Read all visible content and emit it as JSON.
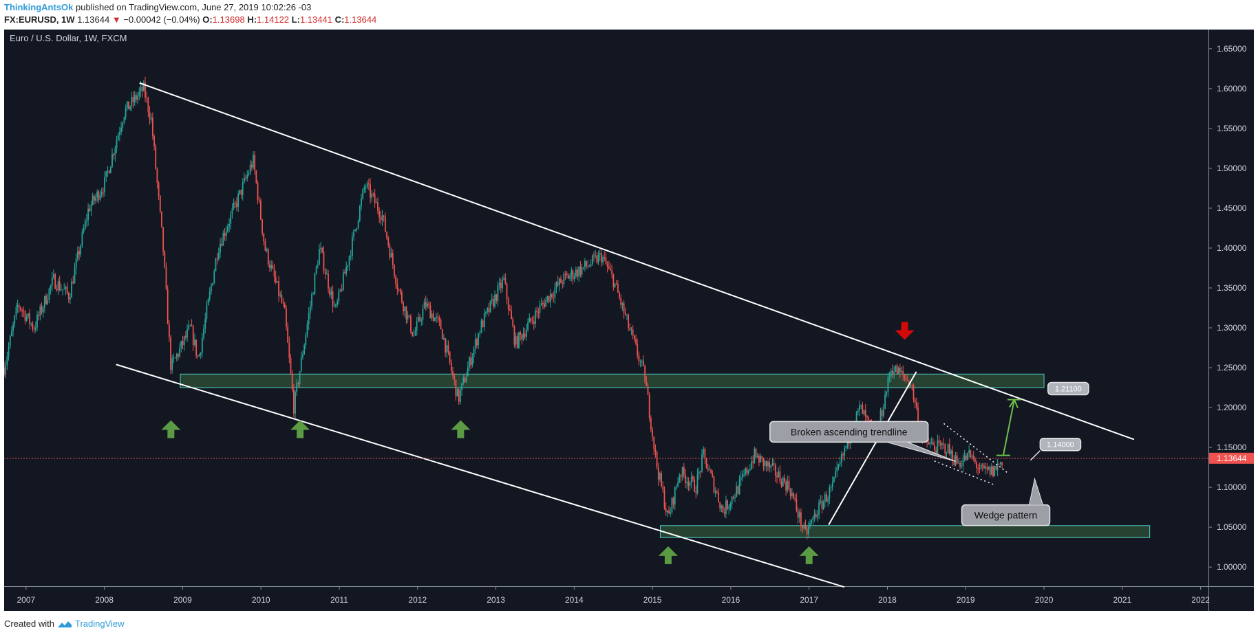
{
  "header": {
    "author": "ThinkingAntsOk",
    "published": "published on TradingView.com, June 27, 2019 10:02:26 -03",
    "symbol": "FX:EURUSD, 1W",
    "last": "1.13644",
    "change_arrow": "▼",
    "change": "−0.00042 (−0.04%)",
    "o_label": "O:",
    "o": "1.13698",
    "h_label": "H:",
    "h": "1.14122",
    "l_label": "L:",
    "l": "1.13441",
    "c_label": "C:",
    "c": "1.13644"
  },
  "footer": {
    "created_with": "Created with",
    "brand": "TradingView"
  },
  "colors": {
    "bg": "#131722",
    "up": "#26a69a",
    "down": "#ef5350",
    "zone": "#2d4a34",
    "zone_border": "#4dd0c8",
    "arrow_up": "#5b9b43",
    "arrow_down": "#d10a0a",
    "price_line": "#ef5350"
  },
  "chart_data": {
    "type": "candlestick",
    "title": "Euro / U.S. Dollar, 1W, FXCM",
    "x_ticks": [
      "2007",
      "2008",
      "2009",
      "2010",
      "2011",
      "2012",
      "2013",
      "2014",
      "2015",
      "2016",
      "2017",
      "2018",
      "2019",
      "2020",
      "2021",
      "2022"
    ],
    "xlim": [
      2006.72,
      2022.1
    ],
    "y_ticks": [
      "1.65000",
      "1.60000",
      "1.55000",
      "1.50000",
      "1.45000",
      "1.40000",
      "1.35000",
      "1.30000",
      "1.25000",
      "1.20000",
      "1.15000",
      "1.10000",
      "1.05000",
      "1.00000"
    ],
    "ylim": [
      0.976,
      1.674
    ],
    "current_price": 1.13644,
    "current_price_label": "1.13644",
    "price_path": [
      [
        2006.72,
        1.25
      ],
      [
        2006.9,
        1.33
      ],
      [
        2007.1,
        1.3
      ],
      [
        2007.35,
        1.36
      ],
      [
        2007.55,
        1.34
      ],
      [
        2007.8,
        1.45
      ],
      [
        2008.0,
        1.48
      ],
      [
        2008.25,
        1.57
      ],
      [
        2008.5,
        1.6
      ],
      [
        2008.6,
        1.56
      ],
      [
        2008.75,
        1.4
      ],
      [
        2008.85,
        1.25
      ],
      [
        2008.95,
        1.27
      ],
      [
        2009.1,
        1.3
      ],
      [
        2009.2,
        1.26
      ],
      [
        2009.45,
        1.4
      ],
      [
        2009.7,
        1.46
      ],
      [
        2009.9,
        1.51
      ],
      [
        2010.05,
        1.4
      ],
      [
        2010.3,
        1.32
      ],
      [
        2010.42,
        1.2
      ],
      [
        2010.55,
        1.28
      ],
      [
        2010.75,
        1.4
      ],
      [
        2010.95,
        1.32
      ],
      [
        2011.15,
        1.4
      ],
      [
        2011.33,
        1.48
      ],
      [
        2011.55,
        1.44
      ],
      [
        2011.75,
        1.35
      ],
      [
        2011.95,
        1.29
      ],
      [
        2012.1,
        1.33
      ],
      [
        2012.3,
        1.3
      ],
      [
        2012.52,
        1.21
      ],
      [
        2012.8,
        1.3
      ],
      [
        2013.1,
        1.36
      ],
      [
        2013.25,
        1.28
      ],
      [
        2013.6,
        1.33
      ],
      [
        2013.85,
        1.36
      ],
      [
        2014.2,
        1.38
      ],
      [
        2014.35,
        1.39
      ],
      [
        2014.5,
        1.36
      ],
      [
        2014.7,
        1.3
      ],
      [
        2014.9,
        1.24
      ],
      [
        2015.05,
        1.13
      ],
      [
        2015.2,
        1.06
      ],
      [
        2015.35,
        1.12
      ],
      [
        2015.55,
        1.1
      ],
      [
        2015.65,
        1.14
      ],
      [
        2015.9,
        1.07
      ],
      [
        2016.1,
        1.1
      ],
      [
        2016.3,
        1.14
      ],
      [
        2016.55,
        1.12
      ],
      [
        2016.75,
        1.1
      ],
      [
        2016.95,
        1.04
      ],
      [
        2017.1,
        1.07
      ],
      [
        2017.3,
        1.1
      ],
      [
        2017.5,
        1.16
      ],
      [
        2017.65,
        1.2
      ],
      [
        2017.85,
        1.16
      ],
      [
        2018.05,
        1.25
      ],
      [
        2018.2,
        1.24
      ],
      [
        2018.3,
        1.23
      ],
      [
        2018.45,
        1.16
      ],
      [
        2018.6,
        1.15
      ],
      [
        2018.75,
        1.15
      ],
      [
        2018.9,
        1.13
      ],
      [
        2019.05,
        1.14
      ],
      [
        2019.2,
        1.12
      ],
      [
        2019.35,
        1.12
      ],
      [
        2019.48,
        1.136
      ]
    ],
    "trendlines": [
      {
        "name": "upper-channel",
        "from": [
          2008.45,
          1.607
        ],
        "to": [
          2021.15,
          1.16
        ]
      },
      {
        "name": "lower-channel",
        "from": [
          2008.15,
          1.254
        ],
        "to": [
          2017.45,
          0.975
        ]
      },
      {
        "name": "broken-ascending-trendline",
        "from": [
          2017.25,
          1.053
        ],
        "to": [
          2018.37,
          1.245
        ]
      },
      {
        "name": "wedge-upper",
        "from": [
          2018.72,
          1.18
        ],
        "to": [
          2019.55,
          1.117
        ]
      },
      {
        "name": "wedge-lower",
        "from": [
          2018.6,
          1.133
        ],
        "to": [
          2019.37,
          1.103
        ]
      }
    ],
    "zones": [
      {
        "name": "resistance-zone",
        "x": [
          2008.97,
          2020.0
        ],
        "y": [
          1.225,
          1.242
        ]
      },
      {
        "name": "support-zone",
        "x": [
          2015.1,
          2021.35
        ],
        "y": [
          1.037,
          1.052
        ]
      }
    ],
    "annotations": [
      {
        "text": "Broken ascending trendline",
        "x": 2016.5,
        "y": 1.1825
      },
      {
        "text": "Wedge pattern",
        "x": 2018.95,
        "y": 1.078
      },
      {
        "text": "1.21100",
        "x": 2020.05,
        "y": 1.2315
      },
      {
        "text": "1.14000",
        "x": 2019.95,
        "y": 1.1615
      }
    ],
    "target_arrow": {
      "from": [
        2019.48,
        1.14
      ],
      "to": [
        2019.48,
        1.21
      ]
    },
    "up_arrows_x": [
      2008.85,
      2010.5,
      2012.55,
      2015.2,
      2017.0
    ],
    "up_arrows_y": [
      1.172,
      1.172,
      1.172,
      1.014,
      1.014
    ],
    "down_arrow": {
      "x": 2018.22,
      "y": 1.297
    }
  }
}
